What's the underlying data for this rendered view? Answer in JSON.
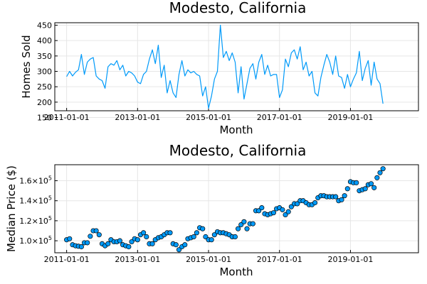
{
  "chart_data": [
    {
      "type": "line",
      "title": "Modesto, California",
      "xlabel": "Month",
      "ylabel": "Homes Sold",
      "color": "#009af9",
      "grid": true,
      "legend": false,
      "x_start": "2011-01",
      "x_ticks": [
        "2011-01-01",
        "2013-01-01",
        "2015-01-01",
        "2017-01-01",
        "2019-01-01"
      ],
      "y_ticks": [
        150,
        200,
        250,
        300,
        350,
        400,
        450
      ],
      "xlim": [
        "2010-09-01",
        "2020-12-01"
      ],
      "ylim": [
        172,
        458
      ],
      "series": [
        {
          "values": [
            283,
            300,
            285,
            297,
            305,
            355,
            290,
            330,
            340,
            345,
            285,
            275,
            270,
            245,
            315,
            325,
            320,
            335,
            305,
            320,
            285,
            300,
            295,
            285,
            265,
            260,
            290,
            300,
            340,
            370,
            325,
            385,
            280,
            320,
            230,
            270,
            230,
            215,
            290,
            335,
            285,
            305,
            295,
            300,
            290,
            285,
            220,
            250,
            180,
            220,
            275,
            300,
            450,
            345,
            365,
            335,
            360,
            330,
            230,
            315,
            210,
            260,
            310,
            325,
            275,
            330,
            355,
            290,
            320,
            285,
            290,
            290,
            215,
            240,
            340,
            315,
            360,
            370,
            340,
            380,
            305,
            330,
            285,
            300,
            230,
            220,
            280,
            320,
            355,
            330,
            290,
            350,
            285,
            280,
            245,
            290,
            250,
            275,
            295,
            365,
            270,
            310,
            335,
            255,
            330,
            275,
            260,
            195
          ]
        }
      ]
    },
    {
      "type": "scatter",
      "title": "Modesto, California",
      "xlabel": "Month",
      "ylabel": "Median Price ($)",
      "color": "#009af9",
      "grid": true,
      "legend": false,
      "x_start": "2011-01",
      "x_ticks": [
        "2011-01-01",
        "2013-01-01",
        "2015-01-01",
        "2017-01-01",
        "2019-01-01"
      ],
      "y_tick_values": [
        100000,
        120000,
        140000,
        160000
      ],
      "y_tick_mantissas": [
        "1.0",
        "1.2",
        "1.4",
        "1.6"
      ],
      "y_tick_base": "×10",
      "y_tick_exp": "5",
      "xlim": [
        "2010-09-01",
        "2020-12-01"
      ],
      "ylim": [
        88000,
        176000
      ],
      "series": [
        {
          "values": [
            101000,
            102000,
            96000,
            95000,
            94500,
            94000,
            98000,
            98000,
            104500,
            110000,
            110000,
            106000,
            97000,
            95000,
            97000,
            101000,
            99000,
            99000,
            100000,
            96000,
            95000,
            94000,
            99000,
            102000,
            101000,
            106000,
            108000,
            104000,
            97000,
            97000,
            101000,
            103000,
            104000,
            106000,
            108000,
            108000,
            97000,
            96000,
            91000,
            94000,
            96000,
            102000,
            103000,
            104000,
            108000,
            113000,
            112000,
            104000,
            101000,
            101000,
            106000,
            109000,
            108000,
            108000,
            107000,
            106000,
            104000,
            104000,
            112000,
            116000,
            119000,
            112000,
            117000,
            117000,
            130000,
            130000,
            133000,
            127000,
            126000,
            127000,
            128000,
            132000,
            133000,
            131000,
            126000,
            129000,
            134000,
            137000,
            137000,
            140000,
            140000,
            138000,
            136000,
            136000,
            138000,
            143000,
            145000,
            145000,
            144000,
            144000,
            144000,
            144000,
            140000,
            141000,
            145000,
            152000,
            159000,
            158000,
            158000,
            150000,
            151000,
            152000,
            156000,
            157000,
            153000,
            163000,
            168000,
            172000
          ]
        }
      ]
    }
  ]
}
